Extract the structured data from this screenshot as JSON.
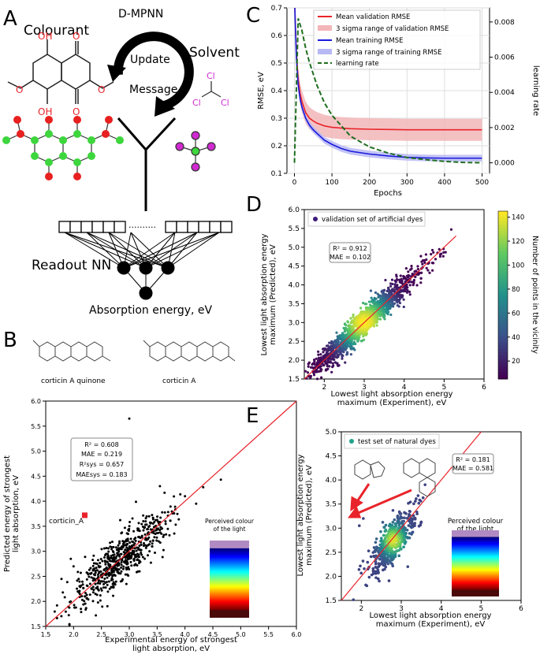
{
  "panels": {
    "A": {
      "letter": "A",
      "colourant": "Colourant",
      "dmpnn": "D-MPNN",
      "update": "Update",
      "message": "Message",
      "solvent": "Solvent",
      "atoms": {
        "O": "O",
        "OH": "OH",
        "Cl": "Cl"
      },
      "dots": "··········",
      "readout": "Readout NN",
      "absorption": "Absorption energy, eV"
    },
    "B": {
      "letter": "B",
      "mol1": "corticin A quinone",
      "mol2": "corticin A",
      "xlabel": "Experimental energy of strongest\nlight absorption, eV",
      "ylabel": "Predicted energy of strongest\nlight absorption, eV",
      "stats": [
        "R² = 0.608",
        "MAE = 0.219",
        "R²sys = 0.657",
        "MAEsys = 0.183"
      ],
      "corticin_label": "corticin_A",
      "colour_bar_title": "Perceived colour\nof the light",
      "xticks": [
        "1.5",
        "2.0",
        "2.5",
        "3.0",
        "3.5",
        "4.0",
        "4.5",
        "5.0",
        "5.5",
        "6.0"
      ],
      "yticks": [
        "1.5",
        "2.0",
        "2.5",
        "3.0",
        "3.5",
        "4.0",
        "4.5",
        "5.0",
        "5.5",
        "6.0"
      ]
    },
    "C": {
      "letter": "C",
      "ylabel": "RMSE, eV",
      "y2label": "learning rate",
      "xlabel": "Epochs",
      "legend": [
        "Mean validation RMSE",
        "3 sigma range of validation RMSE",
        "Mean training RMSE",
        "3 sigma range of training RMSE",
        "learning rate"
      ],
      "xticks": [
        "0",
        "100",
        "200",
        "300",
        "400",
        "500"
      ],
      "yticks": [
        "0.1",
        "0.2",
        "0.3",
        "0.4",
        "0.5",
        "0.6",
        "0.7"
      ],
      "y2ticks": [
        "0.000",
        "0.002",
        "0.004",
        "0.006",
        "0.008"
      ]
    },
    "D": {
      "letter": "D",
      "legend": "validation set of artificial dyes",
      "stats": [
        "R² = 0.912",
        "MAE = 0.102"
      ],
      "xlabel": "Lowest light absorption energy\nmaximum (Experiment), eV",
      "ylabel": "Lowest light absorption energy\nmaximum (Predicted), eV",
      "cbar_label": "Number of points in the vicinity",
      "xticks": [
        "2",
        "3",
        "4",
        "5",
        "6"
      ],
      "yticks": [
        "1.5",
        "2.0",
        "2.5",
        "3.0",
        "3.5",
        "4.0",
        "4.5",
        "5.0",
        "5.5",
        "6.0"
      ],
      "cbar_ticks": [
        "20",
        "40",
        "60",
        "80",
        "100",
        "120",
        "140"
      ]
    },
    "E": {
      "letter": "E",
      "legend": "test set of natural dyes",
      "stats": [
        "R² = 0.181",
        "MAE = 0.581"
      ],
      "xlabel": "Lowest light absorption energy\nmaximum (Experiment), eV",
      "ylabel": "Lowest light absorption energy\nmaximum (Predicted), eV",
      "colour_bar_title": "Perceived colour\nof the light",
      "xticks": [
        "2",
        "3",
        "4",
        "5",
        "6"
      ],
      "yticks": [
        "1.5",
        "2.0",
        "2.5",
        "3.0",
        "3.5",
        "4.0",
        "4.5",
        "5.0"
      ]
    }
  },
  "colors": {
    "val": "#e8242a",
    "val_band": "#f2b6b9",
    "train": "#1a1adb",
    "train_band": "#b8b8f5",
    "lr": "#1f6e1f",
    "identity": "#e8242a"
  },
  "chart_data": [
    {
      "panel": "B",
      "type": "scatter",
      "xlim": [
        1.5,
        6.0
      ],
      "ylim": [
        1.5,
        6.0
      ],
      "identity_line": [
        [
          1.5,
          1.5
        ],
        [
          6.0,
          6.0
        ]
      ],
      "highlight": {
        "name": "corticin_A",
        "x": 2.2,
        "y": 3.72
      },
      "cloud": {
        "center": [
          2.85,
          2.85
        ],
        "spread": 0.45,
        "noise": 0.22,
        "count": 620,
        "seed": 7
      },
      "outliers": [
        [
          3.0,
          5.65
        ],
        [
          1.95,
          2.85
        ],
        [
          2.0,
          2.7
        ],
        [
          4.0,
          4.1
        ],
        [
          4.2,
          3.95
        ],
        [
          3.55,
          4.3
        ],
        [
          2.4,
          1.72
        ]
      ]
    },
    {
      "panel": "C",
      "type": "line",
      "x_range": [
        0,
        500
      ],
      "xlim": [
        -20,
        520
      ],
      "ylim": [
        0.1,
        0.7
      ],
      "y2lim": [
        -0.0006,
        0.0088
      ],
      "series": [
        {
          "name": "Mean validation RMSE",
          "x": [
            1,
            5,
            10,
            15,
            20,
            30,
            40,
            50,
            60,
            80,
            100,
            125,
            150,
            200,
            250,
            300,
            350,
            400,
            450,
            500
          ],
          "y": [
            0.7,
            0.54,
            0.44,
            0.39,
            0.36,
            0.32,
            0.3,
            0.29,
            0.282,
            0.272,
            0.267,
            0.264,
            0.262,
            0.26,
            0.259,
            0.258,
            0.258,
            0.258,
            0.258,
            0.258
          ],
          "band": 0.04
        },
        {
          "name": "Mean training RMSE",
          "x": [
            1,
            5,
            10,
            15,
            20,
            30,
            40,
            50,
            60,
            80,
            100,
            125,
            150,
            200,
            250,
            300,
            350,
            400,
            450,
            500
          ],
          "y": [
            0.7,
            0.52,
            0.42,
            0.37,
            0.34,
            0.3,
            0.275,
            0.258,
            0.245,
            0.22,
            0.205,
            0.19,
            0.18,
            0.17,
            0.163,
            0.158,
            0.156,
            0.155,
            0.155,
            0.155
          ],
          "band": 0.012
        },
        {
          "name": "learning rate",
          "x": [
            0,
            10,
            20,
            30,
            40,
            60,
            80,
            100,
            150,
            200,
            250,
            300,
            350,
            400,
            450,
            500
          ],
          "y": [
            0.0,
            0.0082,
            0.0075,
            0.0065,
            0.0057,
            0.0044,
            0.0034,
            0.0027,
            0.0015,
            0.0009,
            0.00055,
            0.0003,
            0.00018,
            8e-05,
            2e-05,
            0.0
          ]
        }
      ]
    },
    {
      "panel": "D",
      "type": "scatter",
      "xlim": [
        1.5,
        6.0
      ],
      "ylim": [
        1.5,
        6.0
      ],
      "identity_line": [
        [
          1.5,
          1.5
        ],
        [
          5.3,
          5.3
        ]
      ],
      "cloud": {
        "center": [
          3.0,
          3.0
        ],
        "spread": 0.7,
        "noise": 0.16,
        "count": 1500,
        "seed": 3
      },
      "colorbar": {
        "label": "Number of points in the vicinity",
        "range": [
          5,
          145
        ]
      }
    },
    {
      "panel": "E",
      "type": "scatter",
      "xlim": [
        1.5,
        6.0
      ],
      "ylim": [
        1.5,
        5.0
      ],
      "identity_line": [
        [
          1.5,
          1.5
        ],
        [
          5.0,
          5.0
        ]
      ],
      "cloud": {
        "center": [
          2.8,
          2.75
        ],
        "spread": 0.28,
        "noise": 0.2,
        "count": 480,
        "seed": 11
      },
      "outliers": [
        [
          1.82,
          3.55
        ],
        [
          1.95,
          3.05
        ],
        [
          2.05,
          3.2
        ]
      ]
    }
  ]
}
